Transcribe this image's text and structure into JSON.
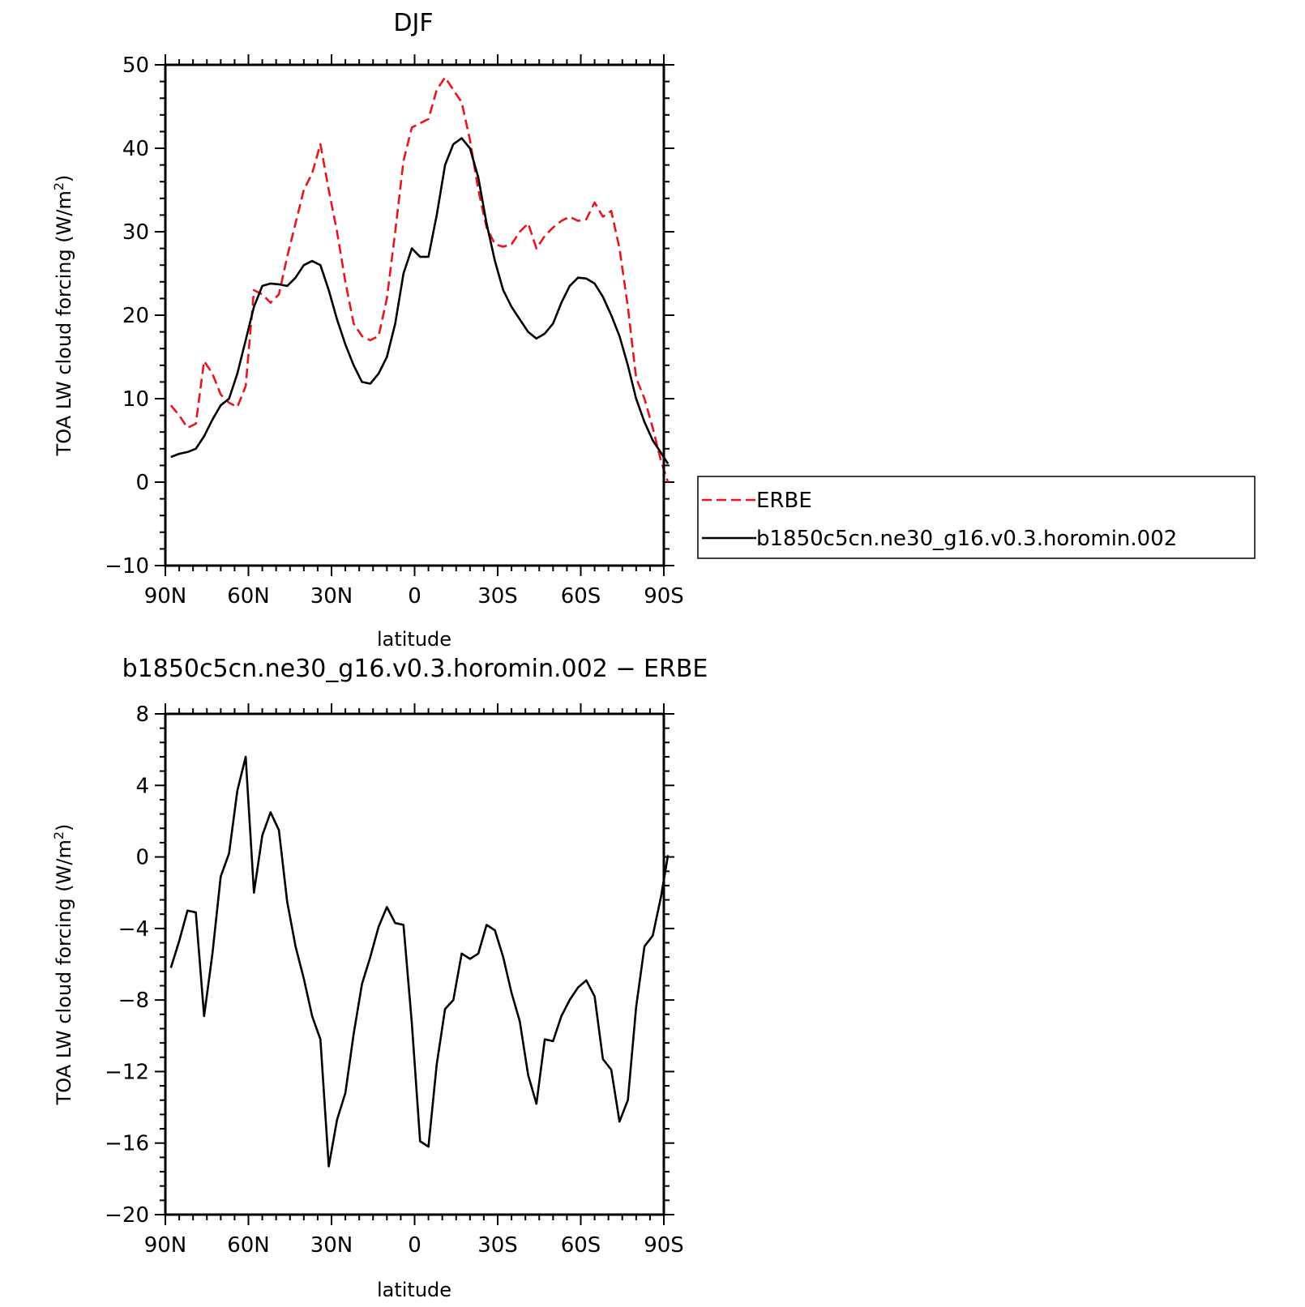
{
  "chart_data": [
    {
      "type": "line",
      "title": "DJF",
      "xlabel": "latitude",
      "ylabel": "TOA LW cloud forcing (W/m²)",
      "ylabel_parts": {
        "pre": "TOA LW cloud forcing (W/m",
        "sup": "2",
        "post": ")"
      },
      "xlim": [
        90,
        -90
      ],
      "ylim": [
        -10,
        50
      ],
      "xticks": [
        {
          "value": 90,
          "label": "90N"
        },
        {
          "value": 60,
          "label": "60N"
        },
        {
          "value": 30,
          "label": "30N"
        },
        {
          "value": 0,
          "label": "0"
        },
        {
          "value": -30,
          "label": "30S"
        },
        {
          "value": -60,
          "label": "60S"
        },
        {
          "value": -90,
          "label": "90S"
        }
      ],
      "yticks": [
        {
          "value": 50,
          "label": "50"
        },
        {
          "value": 40,
          "label": "40"
        },
        {
          "value": 30,
          "label": "30"
        },
        {
          "value": 20,
          "label": "20"
        },
        {
          "value": 10,
          "label": "10"
        },
        {
          "value": 0,
          "label": "0"
        },
        {
          "value": -10,
          "label": "−10"
        }
      ],
      "grid": false,
      "legend_position": "right",
      "series": [
        {
          "name": "ERBE",
          "color": "#e8141e",
          "dash": "dashed",
          "points": [
            [
              88,
              9.2
            ],
            [
              85,
              8
            ],
            [
              82,
              6.5
            ],
            [
              79,
              7
            ],
            [
              76,
              14.5
            ],
            [
              73,
              13
            ],
            [
              70,
              10.5
            ],
            [
              67,
              9.5
            ],
            [
              64,
              9
            ],
            [
              61,
              11.5
            ],
            [
              58,
              23
            ],
            [
              55,
              22.5
            ],
            [
              52,
              21.5
            ],
            [
              49,
              22.5
            ],
            [
              46,
              27
            ],
            [
              43,
              31
            ],
            [
              40,
              35
            ],
            [
              37,
              37
            ],
            [
              34,
              40.5
            ],
            [
              31,
              35
            ],
            [
              28,
              30
            ],
            [
              25,
              24
            ],
            [
              22,
              19
            ],
            [
              19,
              17.5
            ],
            [
              16,
              17
            ],
            [
              13,
              17.5
            ],
            [
              10,
              22
            ],
            [
              7,
              30
            ],
            [
              4,
              38.5
            ],
            [
              1,
              42.5
            ],
            [
              -2,
              43
            ],
            [
              -5,
              43.5
            ],
            [
              -8,
              47
            ],
            [
              -11,
              48.5
            ],
            [
              -14,
              47
            ],
            [
              -17,
              45.5
            ],
            [
              -20,
              41
            ],
            [
              -23,
              35
            ],
            [
              -26,
              30.5
            ],
            [
              -29,
              28.5
            ],
            [
              -32,
              28.2
            ],
            [
              -35,
              28.5
            ],
            [
              -38,
              30
            ],
            [
              -41,
              31
            ],
            [
              -44,
              28
            ],
            [
              -47,
              29.5
            ],
            [
              -50,
              30.5
            ],
            [
              -53,
              31.3
            ],
            [
              -56,
              31.8
            ],
            [
              -59,
              31.3
            ],
            [
              -62,
              31.5
            ],
            [
              -65,
              33.5
            ],
            [
              -68,
              31.8
            ],
            [
              -71,
              32.5
            ],
            [
              -74,
              28
            ],
            [
              -77,
              21
            ],
            [
              -80,
              12.5
            ],
            [
              -83,
              10
            ],
            [
              -86,
              6.5
            ],
            [
              -89,
              2.5
            ],
            [
              -92,
              0
            ],
            [
              -95,
              -1.5
            ],
            [
              -98,
              -2
            ],
            [
              -101,
              3
            ]
          ]
        },
        {
          "name": "b1850c5cn.ne30_g16.v0.3.horomin.002",
          "color": "#000000",
          "dash": "solid",
          "points": [
            [
              88,
              3
            ],
            [
              85,
              3.4
            ],
            [
              82,
              3.6
            ],
            [
              79,
              4
            ],
            [
              76,
              5.5
            ],
            [
              73,
              7.5
            ],
            [
              70,
              9.2
            ],
            [
              67,
              10
            ],
            [
              64,
              13
            ],
            [
              61,
              17
            ],
            [
              58,
              21
            ],
            [
              55,
              23.5
            ],
            [
              52,
              23.8
            ],
            [
              49,
              23.7
            ],
            [
              46,
              23.5
            ],
            [
              43,
              24.5
            ],
            [
              40,
              26
            ],
            [
              37,
              26.5
            ],
            [
              34,
              26
            ],
            [
              31,
              23
            ],
            [
              28,
              19.5
            ],
            [
              25,
              16.5
            ],
            [
              22,
              14
            ],
            [
              19,
              12
            ],
            [
              16,
              11.8
            ],
            [
              13,
              13
            ],
            [
              10,
              15
            ],
            [
              7,
              19
            ],
            [
              4,
              25
            ],
            [
              1,
              28
            ],
            [
              -2,
              27
            ],
            [
              -5,
              27
            ],
            [
              -8,
              32
            ],
            [
              -11,
              38
            ],
            [
              -14,
              40.5
            ],
            [
              -17,
              41.2
            ],
            [
              -20,
              40
            ],
            [
              -23,
              36.5
            ],
            [
              -26,
              31
            ],
            [
              -29,
              26.5
            ],
            [
              -32,
              23
            ],
            [
              -35,
              21
            ],
            [
              -38,
              19.5
            ],
            [
              -41,
              18
            ],
            [
              -44,
              17.2
            ],
            [
              -47,
              17.8
            ],
            [
              -50,
              19
            ],
            [
              -53,
              21.5
            ],
            [
              -56,
              23.5
            ],
            [
              -59,
              24.5
            ],
            [
              -62,
              24.4
            ],
            [
              -65,
              23.8
            ],
            [
              -68,
              22.2
            ],
            [
              -71,
              20
            ],
            [
              -74,
              17.5
            ],
            [
              -77,
              14
            ],
            [
              -80,
              10
            ],
            [
              -83,
              7.2
            ],
            [
              -86,
              5
            ],
            [
              -89,
              3.5
            ],
            [
              -92,
              2.2
            ],
            [
              -95,
              1.5
            ],
            [
              -98,
              1
            ],
            [
              -101,
              0.3
            ]
          ]
        }
      ]
    },
    {
      "type": "line",
      "title": "b1850c5cn.ne30_g16.v0.3.horomin.002 − ERBE",
      "xlabel": "latitude",
      "ylabel": "TOA LW cloud forcing (W/m²)",
      "ylabel_parts": {
        "pre": "TOA LW cloud forcing (W/m",
        "sup": "2",
        "post": ")"
      },
      "xlim": [
        90,
        -90
      ],
      "ylim": [
        -20,
        8
      ],
      "xticks": [
        {
          "value": 90,
          "label": "90N"
        },
        {
          "value": 60,
          "label": "60N"
        },
        {
          "value": 30,
          "label": "30N"
        },
        {
          "value": 0,
          "label": "0"
        },
        {
          "value": -30,
          "label": "30S"
        },
        {
          "value": -60,
          "label": "60S"
        },
        {
          "value": -90,
          "label": "90S"
        }
      ],
      "yticks": [
        {
          "value": 8,
          "label": "8"
        },
        {
          "value": 4,
          "label": "4"
        },
        {
          "value": 0,
          "label": "0"
        },
        {
          "value": -4,
          "label": "−4"
        },
        {
          "value": -8,
          "label": "−8"
        },
        {
          "value": -12,
          "label": "−12"
        },
        {
          "value": -16,
          "label": "−16"
        },
        {
          "value": -20,
          "label": "−20"
        }
      ],
      "grid": false,
      "series": [
        {
          "color": "#000000",
          "dash": "solid",
          "points": [
            [
              88,
              -6.2
            ],
            [
              85,
              -4.7
            ],
            [
              82,
              -3
            ],
            [
              79,
              -3.1
            ],
            [
              76,
              -8.9
            ],
            [
              73,
              -5.4
            ],
            [
              70,
              -1.1
            ],
            [
              67,
              0.2
            ],
            [
              64,
              3.7
            ],
            [
              61,
              5.6
            ],
            [
              58,
              -2
            ],
            [
              55,
              1.2
            ],
            [
              52,
              2.5
            ],
            [
              49,
              1.5
            ],
            [
              46,
              -2.5
            ],
            [
              43,
              -5
            ],
            [
              40,
              -6.8
            ],
            [
              37,
              -8.9
            ],
            [
              34,
              -10.2
            ],
            [
              31,
              -17.3
            ],
            [
              28,
              -14.7
            ],
            [
              25,
              -13.2
            ],
            [
              22,
              -9.9
            ],
            [
              19,
              -7.1
            ],
            [
              16,
              -5.6
            ],
            [
              13,
              -3.9
            ],
            [
              10,
              -2.8
            ],
            [
              7,
              -3.7
            ],
            [
              4,
              -3.8
            ],
            [
              1,
              -9.3
            ],
            [
              -2,
              -15.9
            ],
            [
              -5,
              -16.2
            ],
            [
              -8,
              -11.6
            ],
            [
              -11,
              -8.5
            ],
            [
              -14,
              -8
            ],
            [
              -17,
              -5.4
            ],
            [
              -20,
              -5.7
            ],
            [
              -23,
              -5.4
            ],
            [
              -26,
              -3.8
            ],
            [
              -29,
              -4.1
            ],
            [
              -32,
              -5.6
            ],
            [
              -35,
              -7.6
            ],
            [
              -38,
              -9.2
            ],
            [
              -41,
              -12.2
            ],
            [
              -44,
              -13.8
            ],
            [
              -47,
              -10.2
            ],
            [
              -50,
              -10.3
            ],
            [
              -53,
              -8.9
            ],
            [
              -56,
              -8
            ],
            [
              -59,
              -7.3
            ],
            [
              -62,
              -6.9
            ],
            [
              -65,
              -7.8
            ],
            [
              -68,
              -11.3
            ],
            [
              -71,
              -11.9
            ],
            [
              -74,
              -14.8
            ],
            [
              -77,
              -13.6
            ],
            [
              -80,
              -8.4
            ],
            [
              -83,
              -5
            ],
            [
              -86,
              -4.4
            ],
            [
              -89,
              -2.2
            ],
            [
              -92,
              0.1
            ],
            [
              -95,
              2.3
            ],
            [
              -98,
              3.3
            ],
            [
              -101,
              -2.3
            ]
          ]
        }
      ]
    }
  ]
}
